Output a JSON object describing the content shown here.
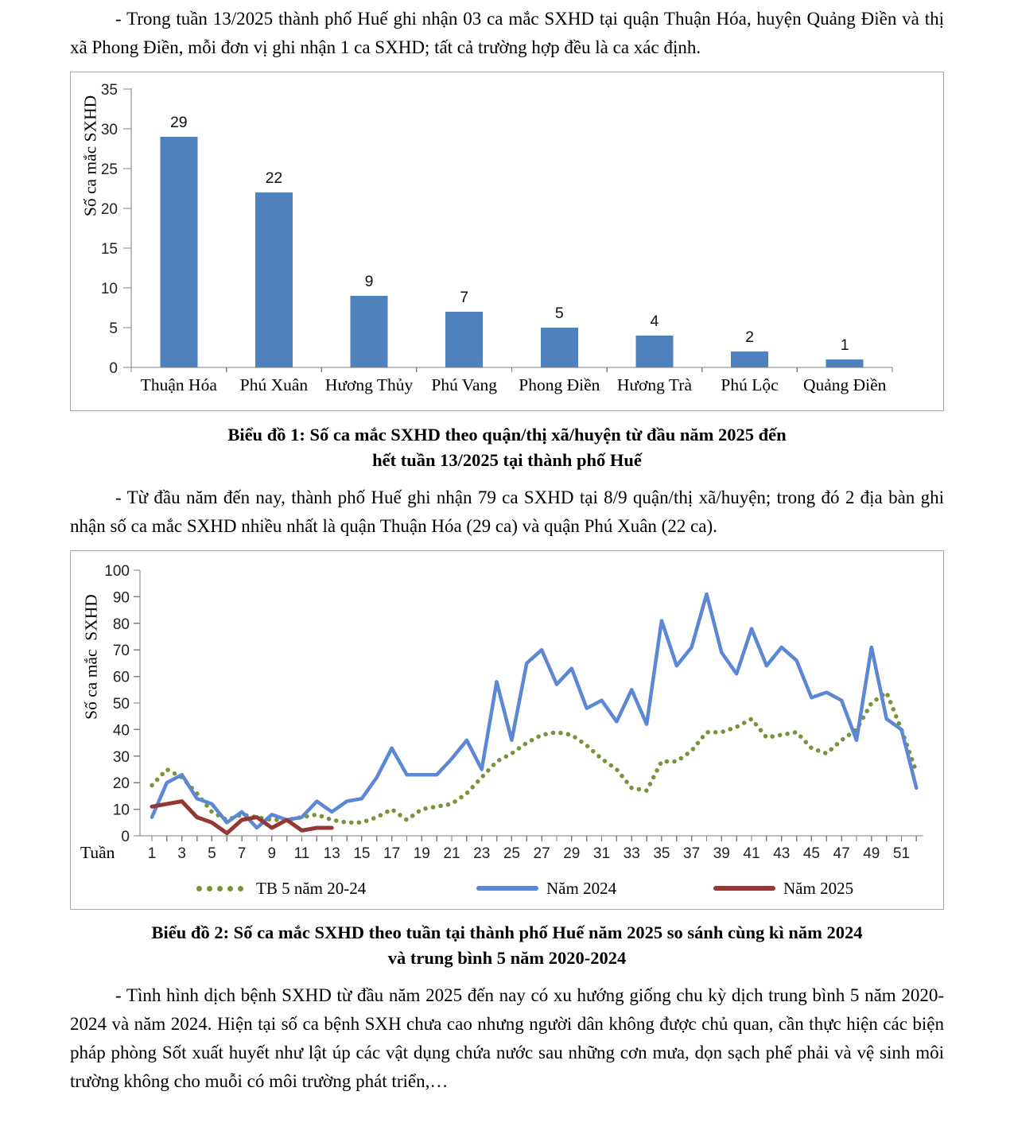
{
  "paragraphs": {
    "p1": "- Trong tuần 13/2025 thành phố Huế ghi nhận 03 ca mắc SXHD tại quận Thuận Hóa, huyện Quảng Điền và thị xã Phong Điền, mỗi đơn vị ghi nhận 1 ca SXHD; tất cả trường hợp đều là ca xác định.",
    "p2": "- Từ đầu năm đến nay, thành phố Huế ghi nhận 79 ca SXHD tại 8/9 quận/thị xã/huyện; trong đó 2 địa bàn ghi nhận số ca mắc SXHD nhiều nhất là quận Thuận Hóa (29 ca) và quận Phú Xuân (22 ca).",
    "p3": "- Tình hình dịch bệnh SXHD từ đầu năm 2025 đến nay có xu hướng giống chu kỳ dịch trung bình 5 năm 2020-2024 và năm 2024. Hiện tại số ca bệnh SXH chưa cao nhưng người dân không được chủ quan, cần thực hiện các biện pháp phòng Sốt xuất huyết như lật úp các vật dụng chứa nước sau những cơn mưa, dọn sạch phế phải và vệ sinh môi trường không cho muỗi có môi trường phát triển,…"
  },
  "captions": {
    "chart1": {
      "line1": "Biểu đồ 1: Số ca mắc SXHD theo quận/thị xã/huyện từ đầu năm 2025 đến",
      "line2": "hết tuần 13/2025 tại thành phố Huế"
    },
    "chart2": {
      "line1": "Biểu đồ 2: Số ca mắc SXHD theo tuần tại thành phố Huế năm 2025 so sánh cùng kì năm 2024",
      "line2": "và trung bình 5 năm 2020-2024"
    }
  },
  "chart_data": [
    {
      "type": "bar",
      "title": "Biểu đồ 1: Số ca mắc SXHD theo quận/thị xã/huyện từ đầu năm 2025 đến hết tuần 13/2025 tại thành phố Huế",
      "ylabel": "Số ca mắc SXHD",
      "ylim": [
        0,
        35
      ],
      "ytick_step": 5,
      "grid": false,
      "categories": [
        "Thuận Hóa",
        "Phú Xuân",
        "Hương Thủy",
        "Phú Vang",
        "Phong Điền",
        "Hương Trà",
        "Phú Lộc",
        "Quảng Điền"
      ],
      "values": [
        29,
        22,
        9,
        7,
        5,
        4,
        2,
        1
      ],
      "bar_color": "#4f81bd",
      "axis_color": "#7f7f7f"
    },
    {
      "type": "line",
      "title": "Biểu đồ 2: Số ca mắc SXHD theo tuần tại thành phố Huế năm 2025 so sánh cùng kì năm 2024 và trung bình 5 năm 2020-2024",
      "ylabel": "Số ca mắc  SXHD",
      "xlabel": "Tuần",
      "ylim": [
        0,
        100
      ],
      "ytick_step": 10,
      "x_min": 1,
      "x_max": 52,
      "xtick_labels": [
        1,
        3,
        5,
        7,
        9,
        11,
        13,
        15,
        17,
        19,
        21,
        23,
        25,
        27,
        29,
        31,
        33,
        35,
        37,
        39,
        41,
        43,
        45,
        47,
        49,
        51
      ],
      "grid": false,
      "legend_position": "bottom",
      "series": [
        {
          "name": "TB 5 năm 20-24",
          "color": "#77933c",
          "style": "dotted",
          "values": [
            19,
            25,
            22,
            16,
            9,
            6,
            8,
            7,
            6,
            6,
            7,
            8,
            6,
            5,
            5,
            7,
            10,
            6,
            10,
            11,
            12,
            16,
            22,
            28,
            31,
            35,
            38,
            39,
            38,
            34,
            29,
            25,
            18,
            17,
            28,
            28,
            32,
            39,
            39,
            41,
            44,
            37,
            38,
            39,
            33,
            31,
            36,
            40,
            50,
            54,
            40,
            24
          ]
        },
        {
          "name": "Năm 2024",
          "color": "#5b87d5",
          "style": "solid",
          "values": [
            7,
            20,
            23,
            14,
            12,
            5,
            9,
            3,
            8,
            6,
            7,
            13,
            9,
            13,
            14,
            22,
            33,
            23,
            23,
            23,
            29,
            36,
            25,
            58,
            36,
            65,
            70,
            57,
            63,
            48,
            51,
            43,
            55,
            42,
            81,
            64,
            71,
            91,
            69,
            61,
            78,
            64,
            71,
            66,
            52,
            54,
            51,
            36,
            71,
            44,
            40,
            18
          ]
        },
        {
          "name": "Năm 2025",
          "color": "#953735",
          "style": "solid",
          "values": [
            11,
            12,
            13,
            7,
            5,
            1,
            6,
            7,
            3,
            6,
            2,
            3,
            3
          ]
        }
      ]
    }
  ]
}
